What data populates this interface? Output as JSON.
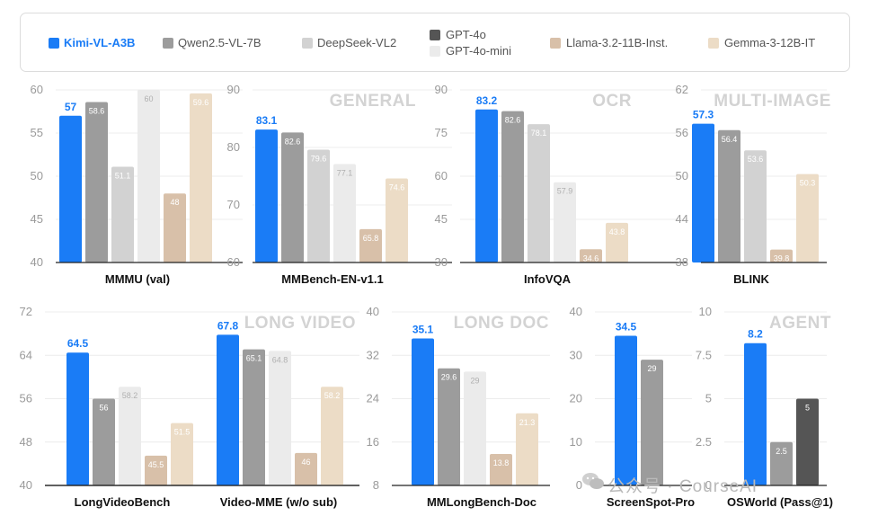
{
  "legend": [
    {
      "name": "Kimi-VL-A3B",
      "color": "#1a7cf6",
      "highlight": true
    },
    {
      "name": "Qwen2.5-VL-7B",
      "color": "#9c9c9c"
    },
    {
      "name": "DeepSeek-VL2",
      "color": "#d2d2d2"
    },
    {
      "name": "GPT-4o",
      "color": "#555555"
    },
    {
      "name": "GPT-4o-mini",
      "color": "#ebebeb"
    },
    {
      "name": "Llama-3.2-11B-Inst.",
      "color": "#d8c0a9"
    },
    {
      "name": "Gemma-3-12B-IT",
      "color": "#ecdcc6"
    }
  ],
  "watermark": "公众号 · CourseAI",
  "chart_data": [
    {
      "type": "bar",
      "title": "MMMU (val)",
      "category": "",
      "ylim": [
        40,
        60
      ],
      "yticks": [
        40,
        45,
        50,
        55,
        60
      ],
      "series": [
        {
          "name": "Kimi-VL-A3B",
          "value": 57
        },
        {
          "name": "Qwen2.5-VL-7B",
          "value": 58.6
        },
        {
          "name": "DeepSeek-VL2",
          "value": 51.1
        },
        {
          "name": "GPT-4o-mini",
          "value": 60
        },
        {
          "name": "Llama-3.2-11B-Inst.",
          "value": 48
        },
        {
          "name": "Gemma-3-12B-IT",
          "value": 59.6
        }
      ]
    },
    {
      "type": "bar",
      "title": "MMBench-EN-v1.1",
      "category": "GENERAL",
      "ylim": [
        60,
        90
      ],
      "yticks": [
        60,
        70,
        80,
        90
      ],
      "series": [
        {
          "name": "Kimi-VL-A3B",
          "value": 83.1
        },
        {
          "name": "Qwen2.5-VL-7B",
          "value": 82.6
        },
        {
          "name": "DeepSeek-VL2",
          "value": 79.6
        },
        {
          "name": "GPT-4o-mini",
          "value": 77.1
        },
        {
          "name": "Llama-3.2-11B-Inst.",
          "value": 65.8
        },
        {
          "name": "Gemma-3-12B-IT",
          "value": 74.6
        }
      ]
    },
    {
      "type": "bar",
      "title": "InfoVQA",
      "category": "OCR",
      "ylim": [
        30,
        90
      ],
      "yticks": [
        30,
        45,
        60,
        75,
        90
      ],
      "series": [
        {
          "name": "Kimi-VL-A3B",
          "value": 83.2
        },
        {
          "name": "Qwen2.5-VL-7B",
          "value": 82.6
        },
        {
          "name": "DeepSeek-VL2",
          "value": 78.1
        },
        {
          "name": "GPT-4o-mini",
          "value": 57.9
        },
        {
          "name": "Llama-3.2-11B-Inst.",
          "value": 34.6
        },
        {
          "name": "Gemma-3-12B-IT",
          "value": 43.8
        }
      ]
    },
    {
      "type": "bar",
      "title": "BLINK",
      "category": "MULTI-IMAGE",
      "ylim": [
        38,
        62
      ],
      "yticks": [
        38,
        44,
        50,
        56,
        62
      ],
      "series": [
        {
          "name": "Kimi-VL-A3B",
          "value": 57.3
        },
        {
          "name": "Qwen2.5-VL-7B",
          "value": 56.4
        },
        {
          "name": "DeepSeek-VL2",
          "value": 53.6
        },
        {
          "name": "Llama-3.2-11B-Inst.",
          "value": 39.8
        },
        {
          "name": "Gemma-3-12B-IT",
          "value": 50.3
        }
      ]
    },
    {
      "type": "bar",
      "title": "LongVideoBench",
      "category": "",
      "ylim": [
        40,
        72
      ],
      "yticks": [
        40,
        48,
        56,
        64,
        72
      ],
      "series": [
        {
          "name": "Kimi-VL-A3B",
          "value": 64.5
        },
        {
          "name": "Qwen2.5-VL-7B",
          "value": 56
        },
        {
          "name": "GPT-4o-mini",
          "value": 58.2
        },
        {
          "name": "Llama-3.2-11B-Inst.",
          "value": 45.5
        },
        {
          "name": "Gemma-3-12B-IT",
          "value": 51.5
        }
      ]
    },
    {
      "type": "bar",
      "title": "Video-MME (w/o sub)",
      "category": "LONG VIDEO",
      "ylim": [
        40,
        72
      ],
      "yticks": [],
      "series": [
        {
          "name": "Kimi-VL-A3B",
          "value": 67.8
        },
        {
          "name": "Qwen2.5-VL-7B",
          "value": 65.1
        },
        {
          "name": "GPT-4o-mini",
          "value": 64.8
        },
        {
          "name": "Llama-3.2-11B-Inst.",
          "value": 46
        },
        {
          "name": "Gemma-3-12B-IT",
          "value": 58.2
        }
      ]
    },
    {
      "type": "bar",
      "title": "MMLongBench-Doc",
      "category": "LONG DOC",
      "ylim": [
        8,
        40
      ],
      "yticks": [
        8,
        16,
        24,
        32,
        40
      ],
      "series": [
        {
          "name": "Kimi-VL-A3B",
          "value": 35.1
        },
        {
          "name": "Qwen2.5-VL-7B",
          "value": 29.6
        },
        {
          "name": "GPT-4o-mini",
          "value": 29
        },
        {
          "name": "Llama-3.2-11B-Inst.",
          "value": 13.8
        },
        {
          "name": "Gemma-3-12B-IT",
          "value": 21.3
        }
      ]
    },
    {
      "type": "bar",
      "title": "ScreenSpot-Pro",
      "category": "",
      "ylim": [
        0,
        40
      ],
      "yticks": [
        0,
        10,
        20,
        30,
        40
      ],
      "series": [
        {
          "name": "Kimi-VL-A3B",
          "value": 34.5
        },
        {
          "name": "Qwen2.5-VL-7B",
          "value": 29
        }
      ]
    },
    {
      "type": "bar",
      "title": "OSWorld (Pass@1)",
      "category": "AGENT",
      "ylim": [
        0,
        10
      ],
      "yticks": [
        0,
        2.5,
        5,
        7.5,
        10
      ],
      "series": [
        {
          "name": "Kimi-VL-A3B",
          "value": 8.2
        },
        {
          "name": "Qwen2.5-VL-7B",
          "value": 2.5
        },
        {
          "name": "GPT-4o",
          "value": 5
        }
      ]
    }
  ]
}
